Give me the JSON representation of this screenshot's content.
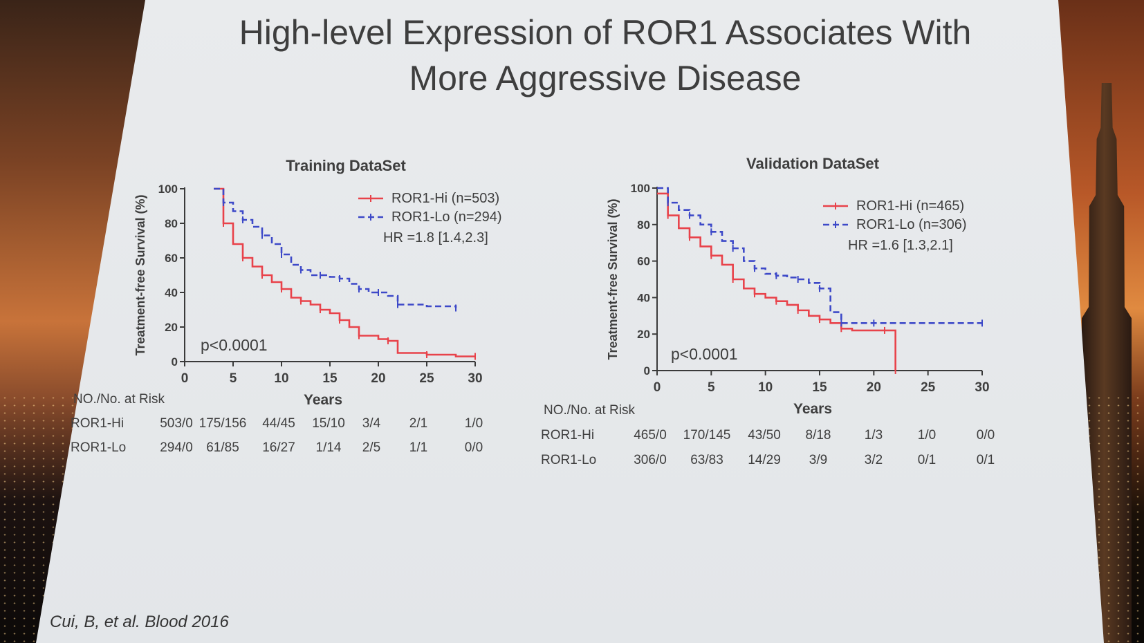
{
  "slide": {
    "title": "High-level Expression of ROR1 Associates With\nMore Aggressive Disease",
    "citation": "Cui, B, et al. Blood 2016"
  },
  "colors": {
    "hi": "#e8424a",
    "lo": "#3d49c8",
    "text": "#3e3e3e",
    "axis": "#3a3a3a"
  },
  "chart_data": [
    {
      "type": "line",
      "title": "Training DataSet",
      "xlabel": "Years",
      "ylabel": "Treatment-free Survival (%)",
      "xlim": [
        0,
        30
      ],
      "ylim": [
        0,
        100
      ],
      "xticks": [
        0,
        5,
        10,
        15,
        20,
        25,
        30
      ],
      "yticks": [
        0,
        20,
        40,
        60,
        80,
        100
      ],
      "grid": false,
      "legend": "top-right",
      "series": [
        {
          "name": "ROR1-Hi (n=503)",
          "key": "hi",
          "style": "solid",
          "x": [
            3,
            4,
            5,
            6,
            7,
            8,
            9,
            10,
            11,
            12,
            13,
            14,
            15,
            16,
            17,
            18,
            20,
            21,
            22,
            25,
            28,
            30
          ],
          "y": [
            100,
            80,
            68,
            60,
            55,
            50,
            46,
            42,
            37,
            35,
            33,
            30,
            28,
            24,
            20,
            15,
            13,
            12,
            5,
            4,
            3,
            3
          ]
        },
        {
          "name": "ROR1-Lo (n=294)",
          "key": "lo",
          "style": "dashed",
          "x": [
            3,
            4,
            5,
            6,
            7,
            8,
            9,
            10,
            11,
            12,
            13,
            14,
            15,
            16,
            17,
            18,
            19,
            20,
            21,
            22,
            25,
            28
          ],
          "y": [
            100,
            92,
            87,
            82,
            78,
            73,
            68,
            62,
            56,
            53,
            50,
            50,
            49,
            48,
            45,
            42,
            40,
            40,
            38,
            33,
            32,
            31
          ]
        }
      ],
      "annotations": [
        "HR =1.8 [1.4,2.3]",
        "p<0.0001"
      ],
      "risk_table": {
        "header": "NO./No. at Risk",
        "rows": [
          {
            "label": "ROR1-Hi",
            "values": [
              "503/0",
              "175/156",
              "44/45",
              "15/10",
              "3/4",
              "2/1",
              "1/0"
            ]
          },
          {
            "label": "ROR1-Lo",
            "values": [
              "294/0",
              "61/85",
              "16/27",
              "1/14",
              "2/5",
              "1/1",
              "0/0"
            ]
          }
        ]
      }
    },
    {
      "type": "line",
      "title": "Validation DataSet",
      "xlabel": "Years",
      "ylabel": "Treatment-free Survival (%)",
      "xlim": [
        0,
        30
      ],
      "ylim": [
        0,
        100
      ],
      "xticks": [
        0,
        5,
        10,
        15,
        20,
        25,
        30
      ],
      "yticks": [
        0,
        20,
        40,
        60,
        80,
        100
      ],
      "grid": false,
      "legend": "top-right",
      "series": [
        {
          "name": "ROR1-Hi (n=465)",
          "key": "hi",
          "style": "solid",
          "x": [
            0,
            1,
            2,
            3,
            4,
            5,
            6,
            7,
            8,
            9,
            10,
            11,
            12,
            13,
            14,
            15,
            16,
            17,
            18,
            21,
            22,
            22
          ],
          "y": [
            97,
            85,
            78,
            73,
            68,
            63,
            58,
            50,
            45,
            42,
            40,
            38,
            36,
            33,
            30,
            28,
            26,
            23,
            22,
            22,
            22,
            0
          ]
        },
        {
          "name": "ROR1-Lo (n=306)",
          "key": "lo",
          "style": "dashed",
          "x": [
            0,
            1,
            2,
            3,
            4,
            5,
            6,
            7,
            8,
            9,
            10,
            11,
            12,
            13,
            14,
            15,
            16,
            17,
            18,
            20,
            25,
            30
          ],
          "y": [
            100,
            92,
            88,
            85,
            80,
            76,
            71,
            67,
            60,
            56,
            53,
            52,
            51,
            50,
            48,
            45,
            32,
            26,
            26,
            26,
            26,
            26
          ]
        }
      ],
      "annotations": [
        "HR =1.6 [1.3,2.1]",
        "p<0.0001"
      ],
      "risk_table": {
        "header": "NO./No. at Risk",
        "rows": [
          {
            "label": "ROR1-Hi",
            "values": [
              "465/0",
              "170/145",
              "43/50",
              "8/18",
              "1/3",
              "1/0",
              "0/0"
            ]
          },
          {
            "label": "ROR1-Lo",
            "values": [
              "306/0",
              "63/83",
              "14/29",
              "3/9",
              "3/2",
              "0/1",
              "0/1"
            ]
          }
        ]
      }
    }
  ]
}
